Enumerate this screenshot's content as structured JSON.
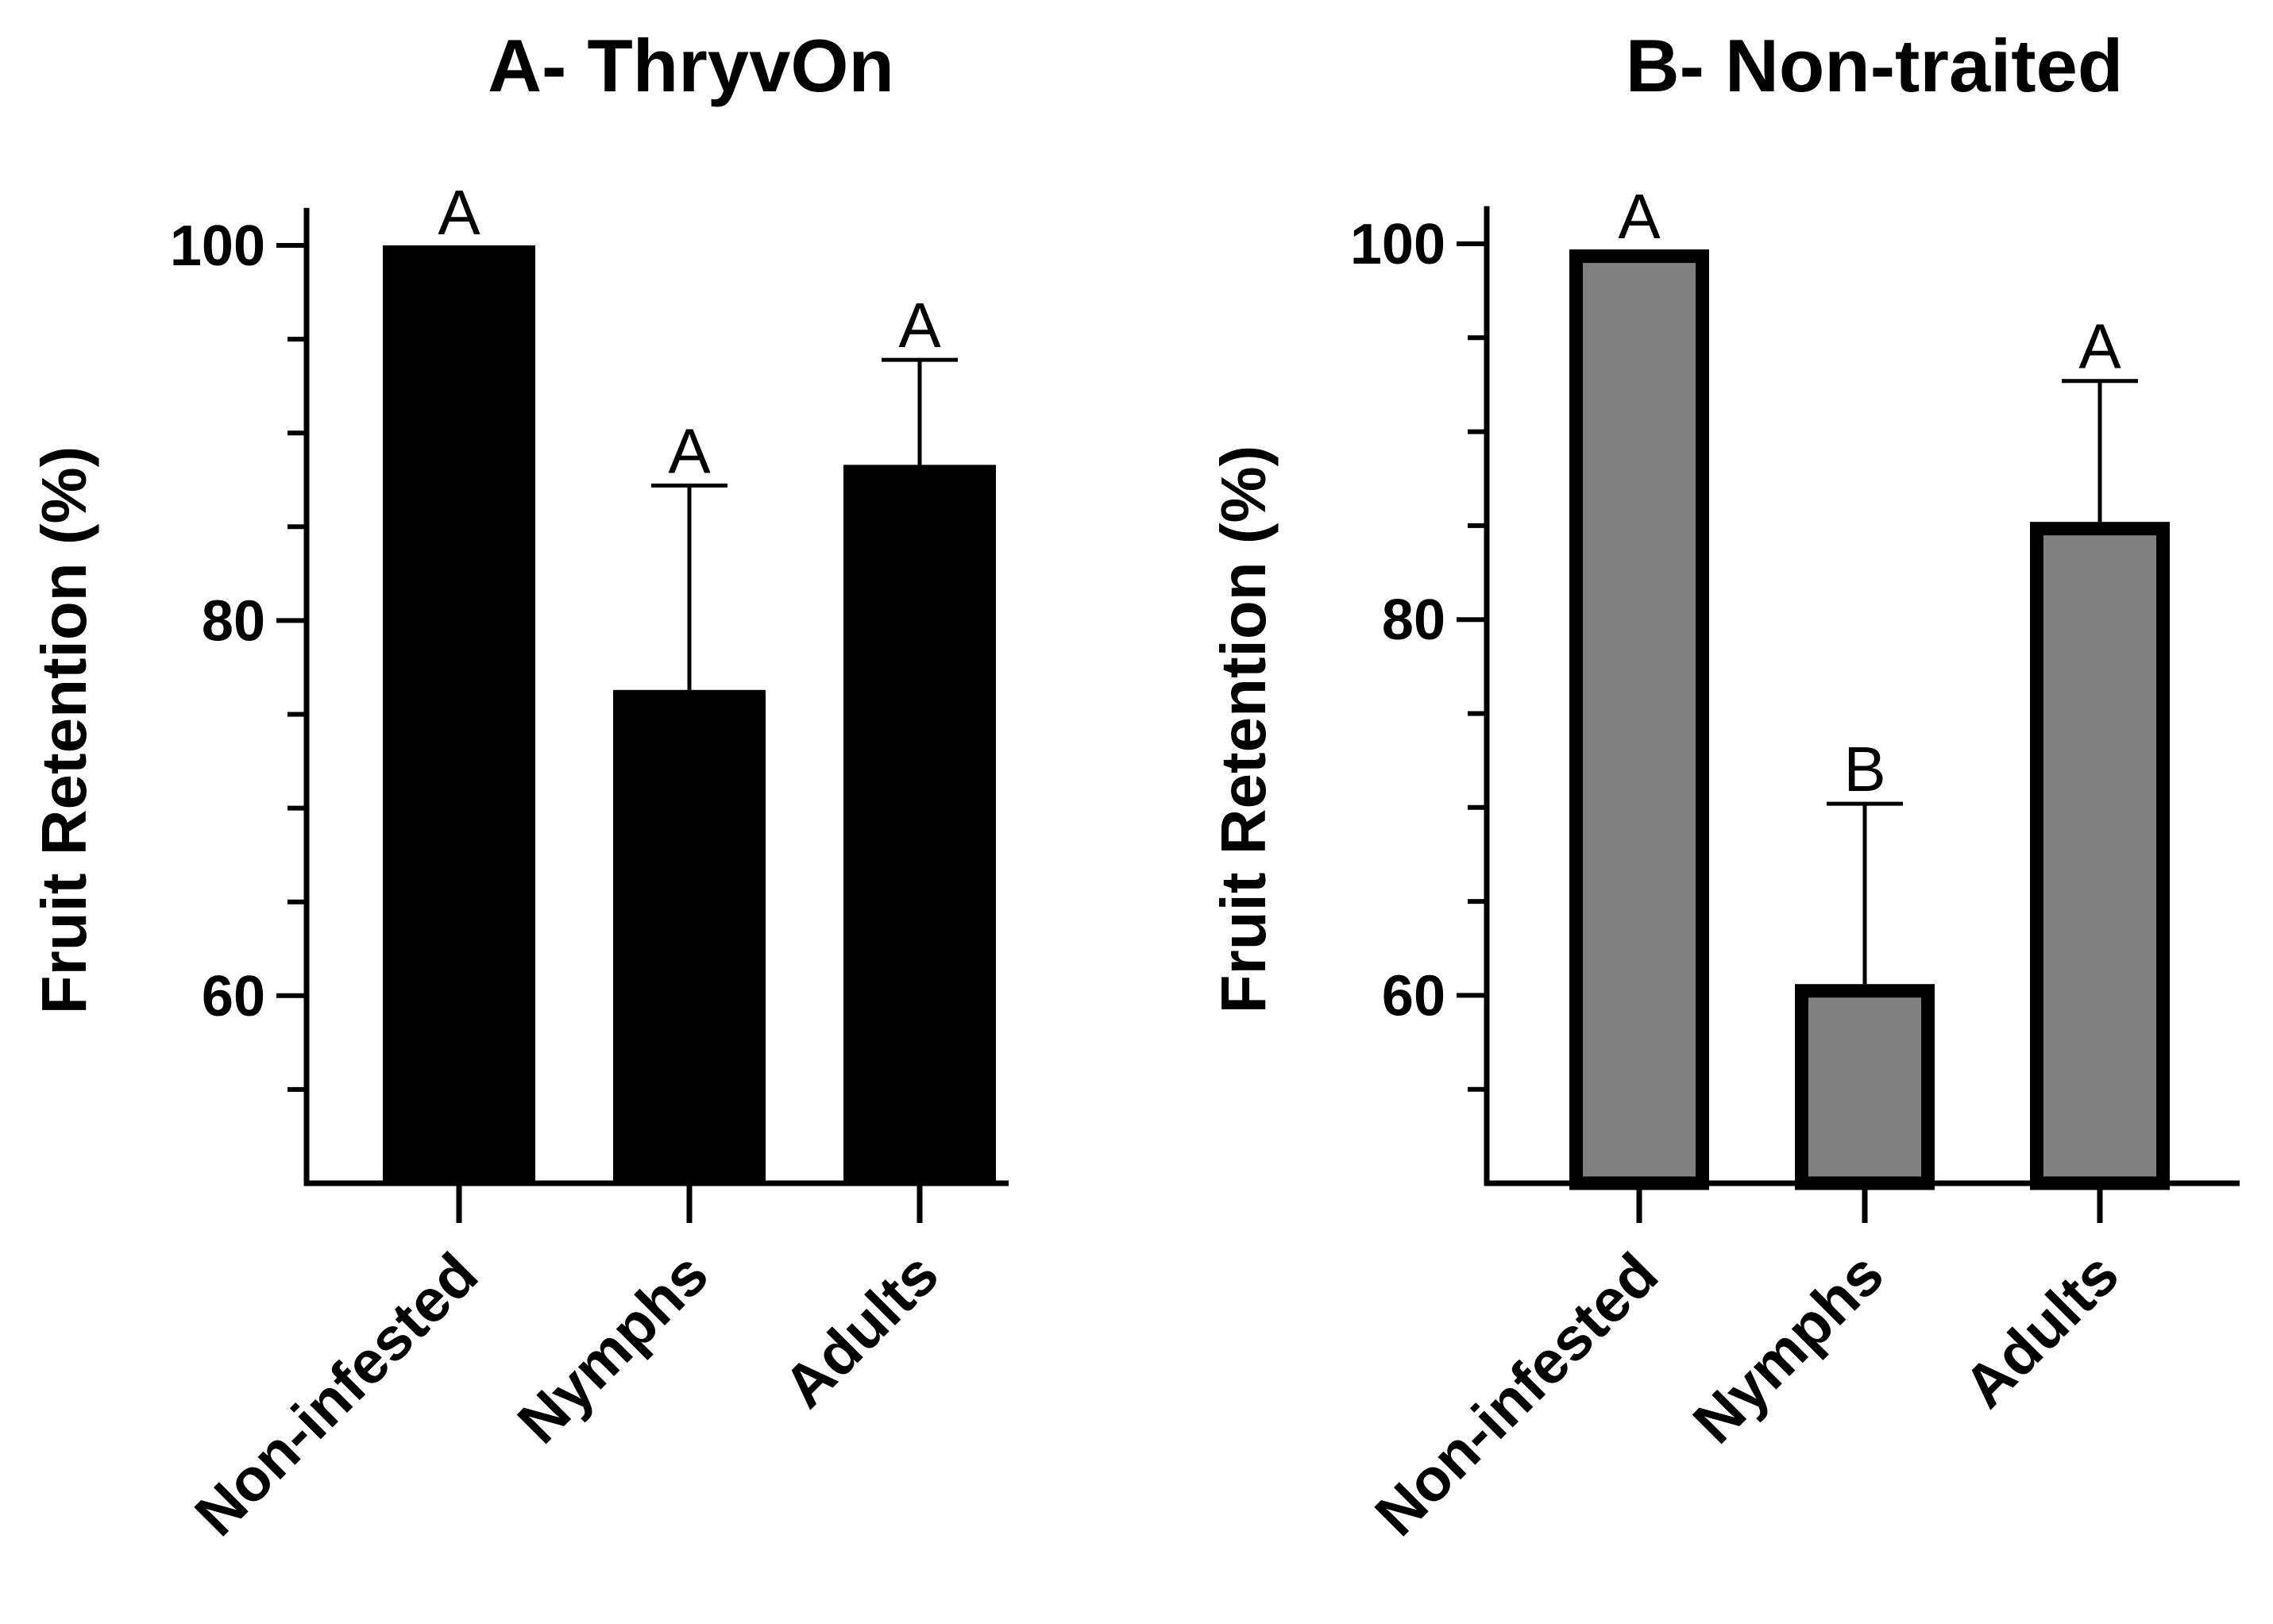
{
  "chart_data": [
    {
      "type": "bar",
      "title": "A- ThryvOn",
      "xlabel": "",
      "ylabel": "Fruit Retention (%)",
      "categories": [
        "Non-infested",
        "Nymphs",
        "Adults"
      ],
      "values": [
        100,
        76.3,
        88.3
      ],
      "error_upper": [
        0,
        10.9,
        5.6
      ],
      "significance_letters": [
        "A",
        "A",
        "A"
      ],
      "ylim": [
        50,
        102
      ],
      "yticks_major": [
        "60",
        "80",
        "100"
      ],
      "bar_fill": "#000000",
      "bar_stroke": "#000000"
    },
    {
      "type": "bar",
      "title": "B- Non-traited",
      "xlabel": "",
      "ylabel": "Fruit Retention (%)",
      "categories": [
        "Non-infested",
        "Nymphs",
        "Adults"
      ],
      "values": [
        99.7,
        60.6,
        85.2
      ],
      "error_upper": [
        0,
        9.6,
        7.5
      ],
      "significance_letters": [
        "A",
        "B",
        "A"
      ],
      "ylim": [
        50,
        102
      ],
      "yticks_major": [
        "60",
        "80",
        "100"
      ],
      "bar_fill": "#808080",
      "bar_stroke": "#000000"
    }
  ]
}
